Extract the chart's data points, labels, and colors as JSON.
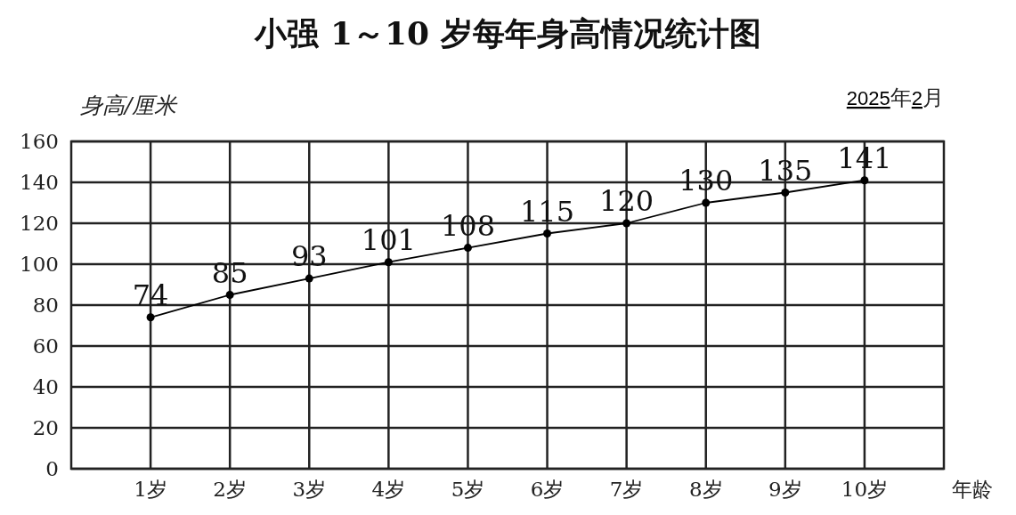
{
  "chart_data": {
    "type": "line",
    "title": "小强 1～10 岁每年身高情况统计图",
    "ylabel": "身高/厘米",
    "xlabel": "年龄",
    "annotations": [
      "2025年2月"
    ],
    "categories": [
      "1岁",
      "2岁",
      "3岁",
      "4岁",
      "5岁",
      "6岁",
      "7岁",
      "8岁",
      "9岁",
      "10岁"
    ],
    "values": [
      74,
      85,
      93,
      101,
      108,
      115,
      120,
      130,
      135,
      141
    ],
    "color": "#000000",
    "ylim": [
      0,
      160
    ],
    "yticks": [
      0,
      20,
      40,
      60,
      80,
      100,
      120,
      140,
      160
    ],
    "grid": true,
    "marker": "circle",
    "data_labels": true
  }
}
